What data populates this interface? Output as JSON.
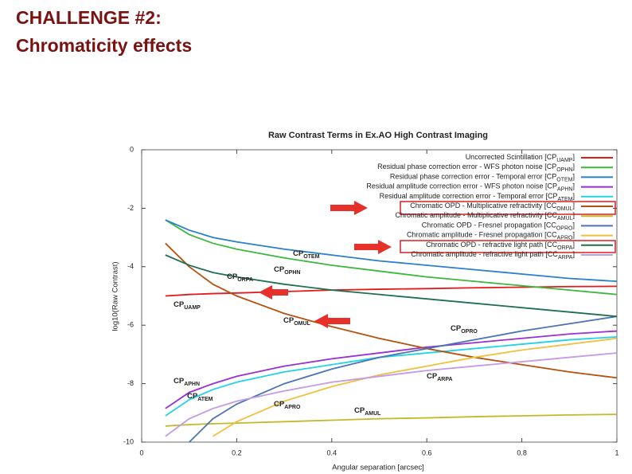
{
  "slide": {
    "title_line1": "CHALLENGE #2:",
    "title_line2": "Chromaticity effects"
  },
  "chart_data": {
    "type": "line",
    "title": "Raw Contrast Terms in Ex.AO High Contrast Imaging",
    "x_label": "Angular separation [arcsec]",
    "y_label": "log10(Raw Contrast)",
    "x": [
      0.05,
      0.1,
      0.15,
      0.2,
      0.3,
      0.4,
      0.5,
      0.6,
      0.7,
      0.8,
      0.9,
      1.0
    ],
    "xlim": [
      0,
      1
    ],
    "xticks": [
      0,
      0.2,
      0.4,
      0.6,
      0.8,
      1
    ],
    "ylim": [
      -10,
      0
    ],
    "yticks": [
      0,
      -2,
      -4,
      -6,
      -8,
      -10
    ],
    "legend": "upper right",
    "series": [
      {
        "name": "Uncorrected Scintillation [CP",
        "sub": "UAMP",
        "close": "]",
        "color": "#e41a1c",
        "values": [
          -5.0,
          -4.95,
          -4.92,
          -4.9,
          -4.85,
          -4.8,
          -4.77,
          -4.75,
          -4.72,
          -4.7,
          -4.68,
          -4.67
        ]
      },
      {
        "name": "Residual phase correction error - WFS photon noise [CP",
        "sub": "OPHN",
        "close": "]",
        "color": "#3cb83c",
        "values": [
          -2.4,
          -2.9,
          -3.2,
          -3.4,
          -3.7,
          -3.95,
          -4.15,
          -4.35,
          -4.5,
          -4.65,
          -4.8,
          -4.95
        ]
      },
      {
        "name": "Residual phase correction error - Temporal error [CP",
        "sub": "OTEM",
        "close": "]",
        "color": "#2a7fd0",
        "values": [
          -2.4,
          -2.75,
          -3.0,
          -3.15,
          -3.4,
          -3.6,
          -3.8,
          -3.95,
          -4.1,
          -4.25,
          -4.4,
          -4.5
        ]
      },
      {
        "name": "Residual amplitude correction error - WFS photon noise [CP",
        "sub": "APHN",
        "close": "]",
        "color": "#9b2fd6",
        "values": [
          -8.85,
          -8.3,
          -8.0,
          -7.75,
          -7.4,
          -7.15,
          -6.95,
          -6.75,
          -6.6,
          -6.45,
          -6.3,
          -6.2
        ]
      },
      {
        "name": "Residual amplitude correction error - Temporal error [CP",
        "sub": "ATEM",
        "close": "]",
        "color": "#22d3e6",
        "values": [
          -9.1,
          -8.55,
          -8.2,
          -7.95,
          -7.6,
          -7.35,
          -7.1,
          -6.95,
          -6.8,
          -6.65,
          -6.5,
          -6.4
        ]
      },
      {
        "name": "Chromatic OPD - Multiplicative refractivity [CC",
        "sub": "OMUL",
        "close": "]",
        "color": "#b5520f",
        "values": [
          -3.2,
          -4.0,
          -4.6,
          -5.0,
          -5.6,
          -6.05,
          -6.45,
          -6.8,
          -7.1,
          -7.35,
          -7.6,
          -7.8
        ]
      },
      {
        "name": "Chromatic amplitude - Multiplicative refractivity [CC",
        "sub": "AMUL",
        "close": "]",
        "color": "#c5b82a",
        "values": [
          -9.45,
          -9.4,
          -9.37,
          -9.35,
          -9.3,
          -9.25,
          -9.2,
          -9.17,
          -9.13,
          -9.1,
          -9.07,
          -9.05
        ]
      },
      {
        "name": "Chromatic OPD - Fresnel propagation [CC",
        "sub": "OPRO",
        "close": "]",
        "color": "#4b74b5",
        "values": [
          null,
          -10,
          -9.2,
          -8.7,
          -8.0,
          -7.5,
          -7.1,
          -6.8,
          -6.5,
          -6.2,
          -5.95,
          -5.7
        ]
      },
      {
        "name": "Chromatic amplitude - Fresnel propagation [CC",
        "sub": "APRO",
        "close": "]",
        "color": "#f0c040",
        "values": [
          null,
          null,
          -9.8,
          -9.3,
          -8.6,
          -8.1,
          -7.7,
          -7.4,
          -7.1,
          -6.85,
          -6.65,
          -6.45
        ]
      },
      {
        "name": "Chromatic OPD - refractive light path [CC",
        "sub": "ORPA",
        "close": "]",
        "color": "#207050",
        "values": [
          -3.6,
          -3.95,
          -4.2,
          -4.35,
          -4.6,
          -4.8,
          -4.95,
          -5.1,
          -5.25,
          -5.4,
          -5.55,
          -5.7
        ]
      },
      {
        "name": "Chromatic amplitude - refractive light path [CC",
        "sub": "ARPA",
        "close": "]",
        "color": "#c39be6",
        "values": [
          -9.8,
          -9.2,
          -8.85,
          -8.6,
          -8.25,
          -7.95,
          -7.75,
          -7.55,
          -7.4,
          -7.25,
          -7.1,
          -6.95
        ]
      }
    ],
    "annotations": [
      {
        "text": "CP",
        "sub": "OTEM"
      },
      {
        "text": "CP",
        "sub": "ORPA"
      },
      {
        "text": "CP",
        "sub": "OPHN"
      },
      {
        "text": "CP",
        "sub": "UAMP"
      },
      {
        "text": "CP",
        "sub": "OMUL"
      },
      {
        "text": "CP",
        "sub": "OPRO"
      },
      {
        "text": "CP",
        "sub": "ARPA"
      },
      {
        "text": "CP",
        "sub": "APHN"
      },
      {
        "text": "CP",
        "sub": "ATEM"
      },
      {
        "text": "CP",
        "sub": "APRO"
      },
      {
        "text": "CP",
        "sub": "AMUL"
      }
    ]
  }
}
